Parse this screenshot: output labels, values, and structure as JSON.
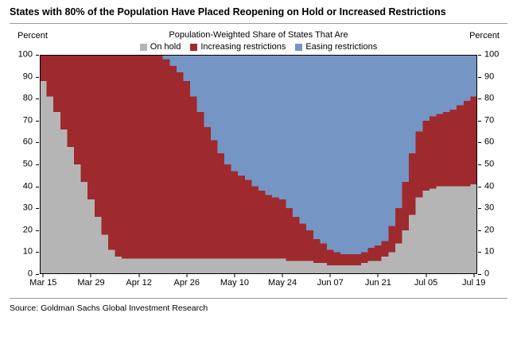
{
  "title": "States with 80% of the Population Have Placed Reopening on Hold or Increased Restrictions",
  "source": "Source: Goldman Sachs Global Investment Research",
  "chart": {
    "subtitle": "Population-Weighted Share of States That Are",
    "left_axis_title": "Percent",
    "right_axis_title": "Percent"
  },
  "chart_data": {
    "type": "area",
    "stacked": true,
    "unit": "percent",
    "ylim": [
      0,
      100
    ],
    "grid": false,
    "legend_position": "top-center",
    "y_ticks": [
      0,
      10,
      20,
      30,
      40,
      50,
      60,
      70,
      80,
      90,
      100
    ],
    "x_tick_labels": [
      "Mar 15",
      "Mar 29",
      "Apr 12",
      "Apr 26",
      "May 10",
      "May 24",
      "Jun 07",
      "Jun 21",
      "Jul 05",
      "Jul 19"
    ],
    "x_tick_indices": [
      0,
      7,
      14,
      21,
      28,
      35,
      42,
      49,
      56,
      63
    ],
    "colors": {
      "on_hold": "#b5b5b5",
      "increasing": "#9e2a2e",
      "easing": "#7595c5"
    },
    "legend": [
      {
        "key": "on_hold",
        "label": "On hold"
      },
      {
        "key": "increasing",
        "label": "Increasing restrictions"
      },
      {
        "key": "easing",
        "label": "Easing restrictions"
      }
    ],
    "dates": [
      "Mar 15",
      "Mar 17",
      "Mar 19",
      "Mar 21",
      "Mar 23",
      "Mar 25",
      "Mar 27",
      "Mar 29",
      "Mar 31",
      "Apr 02",
      "Apr 04",
      "Apr 06",
      "Apr 08",
      "Apr 10",
      "Apr 12",
      "Apr 14",
      "Apr 16",
      "Apr 18",
      "Apr 20",
      "Apr 22",
      "Apr 24",
      "Apr 26",
      "Apr 28",
      "Apr 30",
      "May 02",
      "May 04",
      "May 06",
      "May 08",
      "May 10",
      "May 12",
      "May 14",
      "May 16",
      "May 18",
      "May 20",
      "May 22",
      "May 24",
      "May 26",
      "May 28",
      "May 30",
      "Jun 01",
      "Jun 03",
      "Jun 05",
      "Jun 07",
      "Jun 09",
      "Jun 11",
      "Jun 13",
      "Jun 15",
      "Jun 17",
      "Jun 19",
      "Jun 21",
      "Jun 23",
      "Jun 25",
      "Jun 27",
      "Jun 29",
      "Jul 01",
      "Jul 03",
      "Jul 05",
      "Jul 07",
      "Jul 09",
      "Jul 11",
      "Jul 13",
      "Jul 15",
      "Jul 17",
      "Jul 19"
    ],
    "on_hold": [
      88,
      81,
      74,
      66,
      58,
      50,
      42,
      34,
      26,
      18,
      11,
      8,
      7,
      7,
      7,
      7,
      7,
      7,
      7,
      7,
      7,
      7,
      7,
      7,
      7,
      7,
      7,
      7,
      7,
      7,
      7,
      7,
      7,
      7,
      7,
      7,
      6,
      6,
      6,
      6,
      5,
      5,
      4,
      4,
      4,
      4,
      4,
      5,
      6,
      6,
      8,
      10,
      14,
      20,
      27,
      35,
      38,
      39,
      40,
      40,
      40,
      40,
      40,
      41
    ],
    "increasing": [
      12,
      19,
      26,
      34,
      42,
      50,
      58,
      66,
      74,
      82,
      89,
      92,
      93,
      93,
      93,
      93,
      93,
      93,
      91,
      88,
      85,
      81,
      74,
      67,
      60,
      54,
      48,
      43,
      40,
      38,
      36,
      33,
      31,
      29,
      28,
      27,
      24,
      20,
      17,
      14,
      11,
      9,
      7,
      6,
      5,
      5,
      5,
      5,
      6,
      7,
      7,
      12,
      16,
      22,
      28,
      30,
      32,
      33,
      33,
      34,
      35,
      37,
      39,
      40
    ],
    "easing": [
      0,
      0,
      0,
      0,
      0,
      0,
      0,
      0,
      0,
      0,
      0,
      0,
      0,
      0,
      0,
      0,
      0,
      0,
      2,
      5,
      8,
      12,
      19,
      26,
      33,
      39,
      45,
      50,
      53,
      55,
      57,
      60,
      62,
      64,
      65,
      66,
      70,
      74,
      77,
      80,
      84,
      86,
      89,
      90,
      91,
      91,
      91,
      90,
      88,
      87,
      85,
      78,
      70,
      58,
      45,
      35,
      30,
      28,
      27,
      26,
      25,
      23,
      21,
      19
    ]
  }
}
